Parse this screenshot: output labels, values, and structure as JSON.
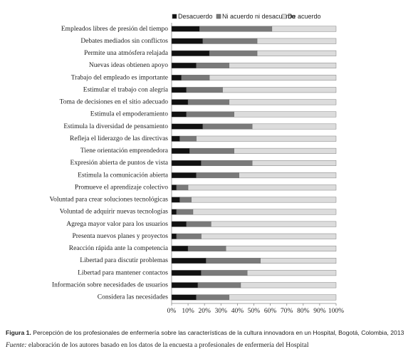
{
  "chart_data": {
    "type": "bar",
    "orientation": "horizontal",
    "stacked": true,
    "categories": [
      "Empleados libres de presión del tiempo",
      "Debates mediados sin conflictos",
      "Permite una atmósfera relajada",
      "Nuevas ideas obtienen apoyo",
      "Trabajo del empleado es importante",
      "Estimular el trabajo con alegría",
      "Toma de decisiones en el sitio adecuado",
      "Estimula el empoderamiento",
      "Estimula la diversidad de pensamiento",
      "Refleja el liderazgo de las directivas",
      "Tiene orientación emprendedora",
      "Expresión abierta de puntos de vista",
      "Estimula la comunicación abierta",
      "Promueve el aprendizaje colectivo",
      "Voluntad para crear soluciones tecnológicas",
      "Voluntad de adquirir nuevas tecnologías",
      "Agrega mayor valor para los usuarios",
      "Presenta nuevos planes y proyectos",
      "Reacción rápida ante la competencia",
      "Libertad para discutir problemas",
      "Libertad para mantener contactos",
      "Información sobre necesidades de usuarios",
      "Considera las necesidades"
    ],
    "series": [
      {
        "name": "Desacuerdo",
        "color": "#111111",
        "values": [
          17,
          19,
          23,
          15,
          6,
          9,
          10,
          9,
          19,
          5,
          11,
          18,
          15,
          3,
          5,
          3,
          9,
          3,
          10,
          21,
          18,
          16,
          15
        ]
      },
      {
        "name": "Ni acuerdo ni desacuerdo",
        "color": "#7a7a7a",
        "values": [
          44,
          33,
          29,
          20,
          17,
          22,
          25,
          29,
          30,
          10,
          27,
          31,
          26,
          7,
          7,
          10,
          15,
          15,
          23,
          33,
          28,
          26,
          20
        ]
      },
      {
        "name": "De acuerdo",
        "color": "#dcdcdc",
        "values": [
          39,
          48,
          48,
          65,
          77,
          69,
          65,
          62,
          51,
          85,
          62,
          51,
          59,
          90,
          88,
          87,
          76,
          82,
          67,
          46,
          54,
          58,
          65
        ]
      }
    ],
    "xlim": [
      0,
      100
    ],
    "xticks": [
      {
        "value": 0,
        "label": "0%"
      },
      {
        "value": 10,
        "label": "10%"
      },
      {
        "value": 20,
        "label": "20%"
      },
      {
        "value": 30,
        "label": "30%"
      },
      {
        "value": 40,
        "label": "40%"
      },
      {
        "value": 50,
        "label": "50%"
      },
      {
        "value": 60,
        "label": "60%"
      },
      {
        "value": 70,
        "label": "70%"
      },
      {
        "value": 80,
        "label": "80%"
      },
      {
        "value": 90,
        "label": "90%"
      },
      {
        "value": 100,
        "label": "100%"
      }
    ],
    "legend_position": "top",
    "caption_label": "Figura 1.",
    "caption": " Percepción de los profesionales de enfermería sobre las características de la cultura innovadora en un Hospital, Bogotá, Colombia, 2013",
    "source_label": "Fuente:",
    "source": " elaboración de los autores basado en los datos de la encuesta a profesionales de enfermería del Hospital"
  }
}
